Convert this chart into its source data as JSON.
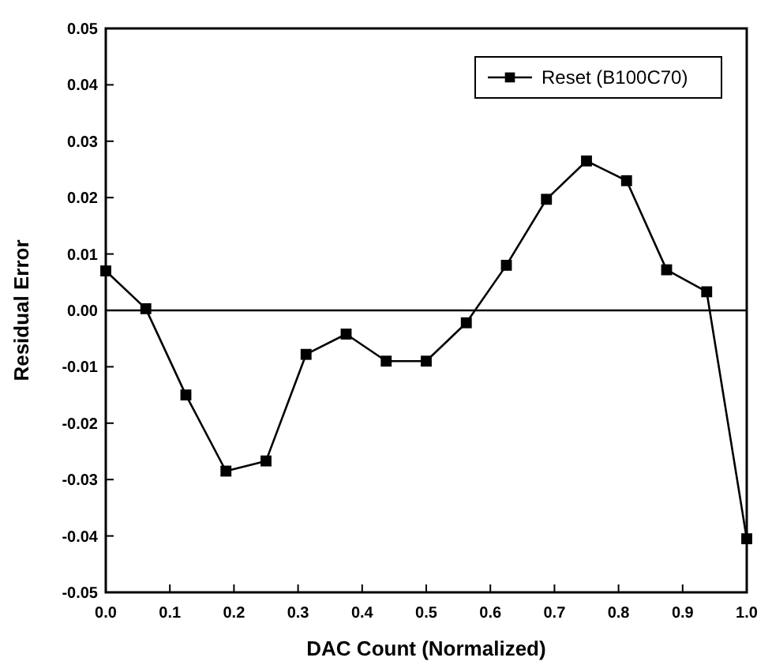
{
  "chart_data": {
    "type": "line",
    "xlabel": "DAC Count (Normalized)",
    "ylabel": "Residual Error",
    "x": [
      0,
      0.0625,
      0.125,
      0.1875,
      0.25,
      0.3125,
      0.375,
      0.4375,
      0.5,
      0.5625,
      0.625,
      0.6875,
      0.75,
      0.8125,
      0.875,
      0.9375,
      1
    ],
    "series": [
      {
        "name": "Reset (B100C70)",
        "color": "#000000",
        "values": [
          0.007,
          0.0003,
          -0.015,
          -0.0285,
          -0.0267,
          -0.0078,
          -0.0042,
          -0.009,
          -0.009,
          -0.0022,
          0.008,
          0.0197,
          0.0265,
          0.023,
          0.0072,
          0.0033,
          -0.0405
        ]
      }
    ],
    "xlim": [
      0,
      1
    ],
    "xticks": [
      {
        "value": 0,
        "label": "0.0"
      },
      0.1,
      0.2,
      0.3,
      0.4,
      0.5,
      0.6,
      0.7,
      0.8,
      0.9,
      {
        "value": 1,
        "label": "1.0"
      }
    ],
    "ylim": [
      -0.05,
      0.05
    ],
    "yticks": [
      {
        "value": -0.05,
        "label": "-0.05"
      },
      {
        "value": -0.04,
        "label": "-0.04"
      },
      {
        "value": -0.03,
        "label": "-0.03"
      },
      {
        "value": -0.02,
        "label": "-0.02"
      },
      {
        "value": -0.01,
        "label": "-0.01"
      },
      {
        "value": 0,
        "label": "0.00"
      },
      {
        "value": 0.01,
        "label": "0.01"
      },
      {
        "value": 0.02,
        "label": "0.02"
      },
      {
        "value": 0.03,
        "label": "0.03"
      },
      {
        "value": 0.04,
        "label": "0.04"
      },
      {
        "value": 0.05,
        "label": "0.05"
      }
    ],
    "ref_lines": [
      {
        "axis": "y",
        "value": 0,
        "color": "#000000"
      }
    ],
    "marker": "square",
    "legend": "top right",
    "grid": false
  }
}
